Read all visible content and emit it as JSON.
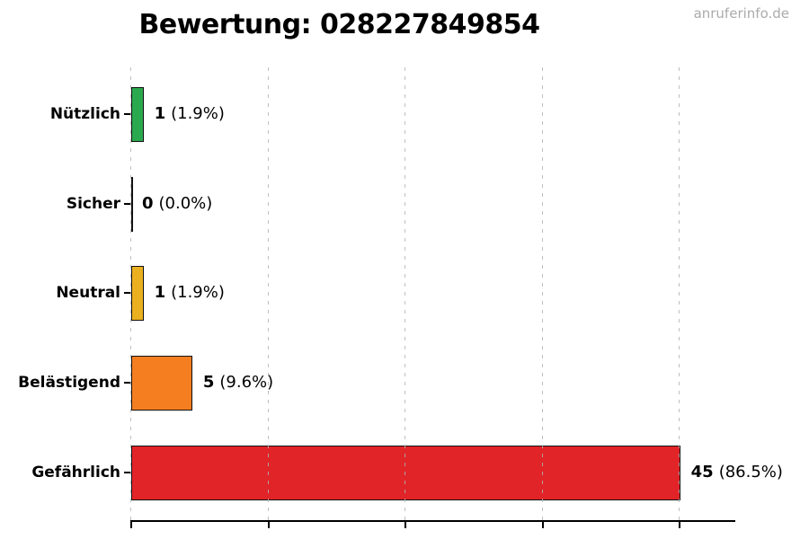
{
  "watermark": "anruferinfo.de",
  "chart_data": {
    "type": "bar",
    "orientation": "horizontal",
    "title": "Bewertung: 028227849854",
    "categories": [
      "Nützlich",
      "Sicher",
      "Neutral",
      "Belästigend",
      "Gefährlich"
    ],
    "values": [
      1,
      0,
      1,
      5,
      45
    ],
    "percentages": [
      1.9,
      0.0,
      1.9,
      9.6,
      86.5
    ],
    "xlabel": "",
    "ylabel": "",
    "xlim": [
      0,
      49.5
    ],
    "xticks": [
      0,
      11.25,
      22.5,
      33.75,
      45
    ],
    "grid": "vertical-dashed-gray",
    "legend": "none",
    "bar_edge_color": "#111111",
    "rows": [
      {
        "label": "Nützlich",
        "value": 1,
        "value_label": "1",
        "pct_label": "(1.9%)",
        "color": "#2BA94F"
      },
      {
        "label": "Sicher",
        "value": 0,
        "value_label": "0",
        "pct_label": "(0.0%)",
        "color": "#000000"
      },
      {
        "label": "Neutral",
        "value": 1,
        "value_label": "1",
        "pct_label": "(1.9%)",
        "color": "#EBB020"
      },
      {
        "label": "Belästigend",
        "value": 5,
        "value_label": "5",
        "pct_label": "(9.6%)",
        "color": "#F57E20"
      },
      {
        "label": "Gefährlich",
        "value": 45,
        "value_label": "45",
        "pct_label": "(86.5%)",
        "color": "#E02428"
      }
    ]
  }
}
